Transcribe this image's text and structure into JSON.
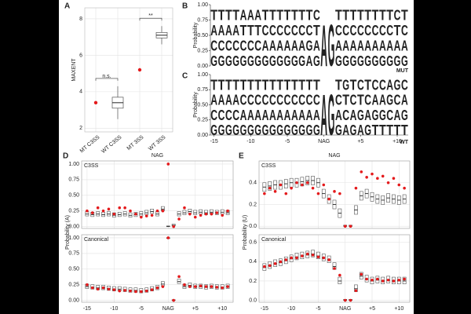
{
  "chart_data": [
    {
      "type": "box",
      "panel": "A",
      "y_label": "MAXENT",
      "categories": [
        "MT C3SS",
        "WT C3SS",
        "MT 3SS",
        "WT 3SS"
      ],
      "points": [
        3.4,
        null,
        5.2,
        null
      ],
      "median": [
        null,
        3.4,
        null,
        7.1
      ],
      "q1": [
        null,
        3.1,
        null,
        6.95
      ],
      "q3": [
        null,
        3.7,
        null,
        7.25
      ],
      "whisker_low": [
        null,
        2.5,
        null,
        6.6
      ],
      "whisker_high": [
        null,
        4.3,
        null,
        7.6
      ],
      "annotations": [
        "n.s.",
        "**"
      ],
      "ylim": [
        1.8,
        8.6
      ],
      "yticks": [
        2,
        4,
        6,
        8
      ],
      "grid": true,
      "point_color": "#e41a1c",
      "box_color": "#555555"
    },
    {
      "type": "logo",
      "panel": "B",
      "y_label": "Probability",
      "x": [
        -15,
        -14,
        -13,
        -12,
        -11,
        -10,
        -9,
        -8,
        -7,
        -6,
        -5,
        -4,
        -3,
        -2,
        -1,
        0,
        1,
        2,
        3,
        4,
        5,
        6,
        7,
        8,
        9,
        10,
        11
      ],
      "columns": [
        [
          "T",
          "A",
          "C",
          "G"
        ],
        [
          "T",
          "A",
          "C",
          "G"
        ],
        [
          "T",
          "A",
          "C",
          "G"
        ],
        [
          "T",
          "A",
          "C",
          "G"
        ],
        [
          "A",
          "T",
          "C",
          "G"
        ],
        [
          "A",
          "T",
          "C",
          "G"
        ],
        [
          "A",
          "T",
          "C",
          "G"
        ],
        [
          "T",
          "C",
          "A",
          "G"
        ],
        [
          "T",
          "C",
          "A",
          "G"
        ],
        [
          "T",
          "C",
          "A",
          "G"
        ],
        [
          "T",
          "C",
          "A",
          "G"
        ],
        [
          "T",
          "C",
          "A",
          "G"
        ],
        [
          "T",
          "C",
          "A",
          "G"
        ],
        [
          "T",
          "C",
          "G",
          "A"
        ],
        [
          "C",
          "T",
          "A",
          "G"
        ],
        [
          "A"
        ],
        [
          "G"
        ],
        [
          "T",
          "C",
          "A",
          "G"
        ],
        [
          "T",
          "C",
          "A",
          "G"
        ],
        [
          "T",
          "C",
          "A",
          "G"
        ],
        [
          "T",
          "C",
          "A",
          "G"
        ],
        [
          "T",
          "C",
          "A",
          "G"
        ],
        [
          "T",
          "C",
          "A",
          "G"
        ],
        [
          "T",
          "C",
          "A",
          "G"
        ],
        [
          "T",
          "C",
          "A",
          "G"
        ],
        [
          "C",
          "T",
          "A",
          "G"
        ],
        [
          "T",
          "C",
          "A",
          "G"
        ]
      ],
      "xlim": [
        -15.5,
        11.5
      ],
      "ylim": [
        0,
        1
      ],
      "yticks": [
        {
          "value": 0,
          "label": "0.00"
        },
        0.25,
        {
          "value": 0.5,
          "label": "0.50"
        },
        0.75,
        {
          "value": 1,
          "label": "1.00"
        }
      ],
      "letter_colors": {
        "A": "#109648",
        "C": "#255c99",
        "G": "#f7b32b",
        "T": "#d62839"
      }
    },
    {
      "type": "logo",
      "panel": "C",
      "y_label": "Probability",
      "top_label": "MUT",
      "bottom_label": "WT",
      "x": [
        -15,
        -14,
        -13,
        -12,
        -11,
        -10,
        -9,
        -8,
        -7,
        -6,
        -5,
        -4,
        -3,
        -2,
        -1,
        0,
        1,
        2,
        3,
        4,
        5,
        6,
        7,
        8,
        9,
        10,
        11
      ],
      "columns": [
        [
          "T",
          "A",
          "C",
          "G"
        ],
        [
          "T",
          "A",
          "C",
          "G"
        ],
        [
          "T",
          "A",
          "C",
          "G"
        ],
        [
          "T",
          "A",
          "C",
          "G"
        ],
        [
          "T",
          "C",
          "A",
          "G"
        ],
        [
          "T",
          "C",
          "A",
          "G"
        ],
        [
          "T",
          "C",
          "A",
          "G"
        ],
        [
          "T",
          "C",
          "A",
          "G"
        ],
        [
          "T",
          "C",
          "A",
          "G"
        ],
        [
          "T",
          "C",
          "A",
          "G"
        ],
        [
          "T",
          "C",
          "A",
          "G"
        ],
        [
          "T",
          "C",
          "A",
          "G"
        ],
        [
          "T",
          "C",
          "A",
          "G"
        ],
        [
          "T",
          "C",
          "A",
          "G"
        ],
        [
          "T",
          "C",
          "A",
          "G"
        ],
        [
          "A"
        ],
        [
          "G"
        ],
        [
          "T",
          "C",
          "A",
          "G"
        ],
        [
          "G",
          "T",
          "C",
          "A"
        ],
        [
          "T",
          "C",
          "A",
          "G"
        ],
        [
          "C",
          "T",
          "G",
          "A"
        ],
        [
          "T",
          "C",
          "A",
          "G"
        ],
        [
          "C",
          "A",
          "G",
          "T"
        ],
        [
          "C",
          "A",
          "G",
          "T"
        ],
        [
          "A",
          "G",
          "C",
          "T"
        ],
        [
          "G",
          "C",
          "A",
          "T"
        ],
        [
          "C",
          "A",
          "G",
          "T"
        ]
      ],
      "xlim": [
        -15.5,
        11.5
      ],
      "ylim": [
        0,
        1
      ],
      "yticks": [
        {
          "value": 0,
          "label": "0.00"
        },
        0.25,
        {
          "value": 0.5,
          "label": "0.50"
        },
        0.75,
        {
          "value": 1,
          "label": "1.00"
        }
      ],
      "xticks": [
        -15,
        -10,
        -5,
        {
          "value": 0,
          "label": "NAG"
        },
        {
          "value": 5,
          "label": "+5"
        },
        {
          "value": 10,
          "label": "+10"
        }
      ],
      "letter_colors": {
        "A": "#109648",
        "C": "#255c99",
        "G": "#f7b32b",
        "T": "#d62839"
      }
    },
    {
      "type": "facet_box",
      "panel": "D",
      "title": "NAG",
      "y_label": "Probability (A)",
      "x": [
        -15,
        -14,
        -13,
        -12,
        -11,
        -10,
        -9,
        -8,
        -7,
        -6,
        -5,
        -4,
        -3,
        -2,
        -1,
        0,
        1,
        2,
        3,
        4,
        5,
        6,
        7,
        8,
        9,
        10,
        11
      ],
      "xlim": [
        -16,
        12
      ],
      "xticks": [
        -15,
        -10,
        -5,
        {
          "value": 0,
          "label": "NAG"
        },
        {
          "value": 5,
          "label": "+5"
        },
        {
          "value": 10,
          "label": "+10"
        }
      ],
      "point_color": "#e41a1c",
      "box_color": "#555555",
      "grid": true,
      "facets": [
        {
          "name": "C3SS",
          "ylim": [
            -0.03,
            1.05
          ],
          "yticks": [
            {
              "value": 0,
              "label": "0.00"
            },
            0.25,
            {
              "value": 0.5,
              "label": "0.50"
            },
            0.75,
            {
              "value": 1,
              "label": "1.00"
            }
          ],
          "median": [
            0.2,
            0.19,
            0.2,
            0.19,
            0.2,
            0.18,
            0.19,
            0.2,
            0.18,
            0.19,
            0.2,
            0.22,
            0.24,
            0.2,
            0.28,
            0.0,
            0.02,
            0.2,
            0.22,
            0.24,
            0.22,
            0.23,
            0.22,
            0.23,
            0.22,
            0.23,
            0.22
          ],
          "q1": [
            0.17,
            0.16,
            0.17,
            0.16,
            0.17,
            0.15,
            0.16,
            0.17,
            0.15,
            0.16,
            0.17,
            0.19,
            0.21,
            0.17,
            0.25,
            0.0,
            0.01,
            0.17,
            0.19,
            0.21,
            0.19,
            0.2,
            0.19,
            0.2,
            0.19,
            0.2,
            0.19
          ],
          "q3": [
            0.24,
            0.23,
            0.24,
            0.23,
            0.24,
            0.22,
            0.23,
            0.24,
            0.22,
            0.23,
            0.24,
            0.26,
            0.28,
            0.24,
            0.32,
            0.01,
            0.04,
            0.24,
            0.26,
            0.28,
            0.26,
            0.27,
            0.26,
            0.27,
            0.26,
            0.27,
            0.26
          ],
          "points": [
            0.25,
            0.22,
            0.3,
            0.25,
            0.28,
            0.2,
            0.3,
            0.3,
            0.25,
            0.2,
            0.15,
            0.17,
            0.18,
            0.25,
            0.25,
            1.0,
            0.0,
            0.12,
            0.3,
            0.2,
            0.15,
            0.18,
            0.2,
            0.2,
            0.22,
            0.18,
            0.25
          ]
        },
        {
          "name": "Canonical",
          "ylim": [
            -0.03,
            1.05
          ],
          "yticks": [
            {
              "value": 0,
              "label": "0.00"
            },
            0.25,
            {
              "value": 0.5,
              "label": "0.50"
            },
            0.75,
            {
              "value": 1,
              "label": "1.00"
            }
          ],
          "median": [
            0.22,
            0.21,
            0.2,
            0.2,
            0.19,
            0.18,
            0.18,
            0.17,
            0.16,
            0.16,
            0.15,
            0.16,
            0.18,
            0.2,
            0.26,
            1.0,
            0.0,
            0.3,
            0.22,
            0.24,
            0.22,
            0.22,
            0.21,
            0.22,
            0.21,
            0.21,
            0.22
          ],
          "q1": [
            0.19,
            0.18,
            0.17,
            0.17,
            0.16,
            0.15,
            0.15,
            0.14,
            0.13,
            0.13,
            0.12,
            0.13,
            0.15,
            0.17,
            0.23,
            0.99,
            0.0,
            0.27,
            0.19,
            0.21,
            0.19,
            0.19,
            0.18,
            0.19,
            0.18,
            0.18,
            0.19
          ],
          "q3": [
            0.26,
            0.25,
            0.24,
            0.24,
            0.23,
            0.22,
            0.22,
            0.21,
            0.2,
            0.2,
            0.19,
            0.2,
            0.22,
            0.24,
            0.3,
            1.0,
            0.01,
            0.34,
            0.26,
            0.28,
            0.26,
            0.26,
            0.25,
            0.26,
            0.25,
            0.25,
            0.26
          ],
          "points": [
            0.25,
            0.2,
            0.18,
            0.2,
            0.18,
            0.17,
            0.15,
            0.16,
            0.15,
            0.14,
            0.14,
            0.15,
            0.17,
            0.2,
            0.22,
            1.0,
            0.0,
            0.38,
            0.25,
            0.22,
            0.22,
            0.23,
            0.22,
            0.22,
            0.21,
            0.2,
            0.22
          ]
        }
      ]
    },
    {
      "type": "facet_box",
      "panel": "E",
      "title": "NAG",
      "y_label": "Probability (U)",
      "x": [
        -15,
        -14,
        -13,
        -12,
        -11,
        -10,
        -9,
        -8,
        -7,
        -6,
        -5,
        -4,
        -3,
        -2,
        -1,
        0,
        1,
        2,
        3,
        4,
        5,
        6,
        7,
        8,
        9,
        10,
        11
      ],
      "xlim": [
        -16,
        12
      ],
      "xticks": [
        -15,
        -10,
        -5,
        {
          "value": 0,
          "label": "NAG"
        },
        {
          "value": 5,
          "label": "+5"
        },
        {
          "value": 10,
          "label": "+10"
        }
      ],
      "point_color": "#e41a1c",
      "box_color": "#555555",
      "grid": true,
      "facets": [
        {
          "name": "C3SS",
          "ylim": [
            -0.02,
            0.6
          ],
          "yticks": [
            {
              "value": 0,
              "label": "0.0"
            },
            0.2,
            0.4
          ],
          "median": [
            0.36,
            0.37,
            0.38,
            0.38,
            0.39,
            0.4,
            0.4,
            0.41,
            0.42,
            0.42,
            0.4,
            0.3,
            0.25,
            0.2,
            0.12,
            0.0,
            0.0,
            0.15,
            0.28,
            0.3,
            0.27,
            0.25,
            0.24,
            0.26,
            0.25,
            0.24,
            0.25
          ],
          "q1": [
            0.32,
            0.33,
            0.34,
            0.34,
            0.35,
            0.36,
            0.36,
            0.37,
            0.38,
            0.38,
            0.36,
            0.26,
            0.21,
            0.16,
            0.08,
            0.0,
            0.0,
            0.11,
            0.24,
            0.26,
            0.23,
            0.21,
            0.2,
            0.22,
            0.21,
            0.2,
            0.21
          ],
          "q3": [
            0.4,
            0.41,
            0.42,
            0.42,
            0.43,
            0.44,
            0.44,
            0.45,
            0.46,
            0.46,
            0.44,
            0.34,
            0.29,
            0.24,
            0.16,
            0.01,
            0.01,
            0.19,
            0.32,
            0.34,
            0.31,
            0.29,
            0.28,
            0.3,
            0.29,
            0.28,
            0.29
          ],
          "points": [
            0.3,
            0.35,
            0.32,
            0.38,
            0.3,
            0.35,
            0.4,
            0.38,
            0.4,
            0.35,
            0.3,
            0.38,
            0.25,
            0.32,
            0.3,
            0.0,
            0.0,
            0.35,
            0.5,
            0.45,
            0.48,
            0.44,
            0.46,
            0.4,
            0.44,
            0.38,
            0.35
          ]
        },
        {
          "name": "Canonical",
          "ylim": [
            -0.02,
            0.68
          ],
          "yticks": [
            {
              "value": 0,
              "label": "0.0"
            },
            0.2,
            0.4,
            0.6
          ],
          "median": [
            0.34,
            0.36,
            0.38,
            0.39,
            0.41,
            0.43,
            0.45,
            0.46,
            0.47,
            0.48,
            0.46,
            0.44,
            0.42,
            0.35,
            0.2,
            0.0,
            0.0,
            0.12,
            0.25,
            0.22,
            0.2,
            0.21,
            0.2,
            0.21,
            0.2,
            0.2,
            0.2
          ],
          "q1": [
            0.31,
            0.33,
            0.35,
            0.36,
            0.38,
            0.4,
            0.42,
            0.43,
            0.44,
            0.45,
            0.43,
            0.41,
            0.39,
            0.32,
            0.17,
            0.0,
            0.0,
            0.09,
            0.22,
            0.19,
            0.17,
            0.18,
            0.17,
            0.18,
            0.17,
            0.17,
            0.17
          ],
          "q3": [
            0.38,
            0.4,
            0.42,
            0.43,
            0.45,
            0.47,
            0.49,
            0.5,
            0.51,
            0.52,
            0.5,
            0.48,
            0.46,
            0.39,
            0.24,
            0.01,
            0.01,
            0.16,
            0.29,
            0.26,
            0.24,
            0.25,
            0.24,
            0.25,
            0.24,
            0.24,
            0.24
          ],
          "points": [
            0.35,
            0.36,
            0.38,
            0.4,
            0.42,
            0.44,
            0.44,
            0.46,
            0.48,
            0.47,
            0.45,
            0.44,
            0.42,
            0.33,
            0.26,
            0.0,
            0.0,
            0.1,
            0.27,
            0.22,
            0.21,
            0.22,
            0.2,
            0.21,
            0.2,
            0.21,
            0.22
          ]
        }
      ]
    }
  ]
}
